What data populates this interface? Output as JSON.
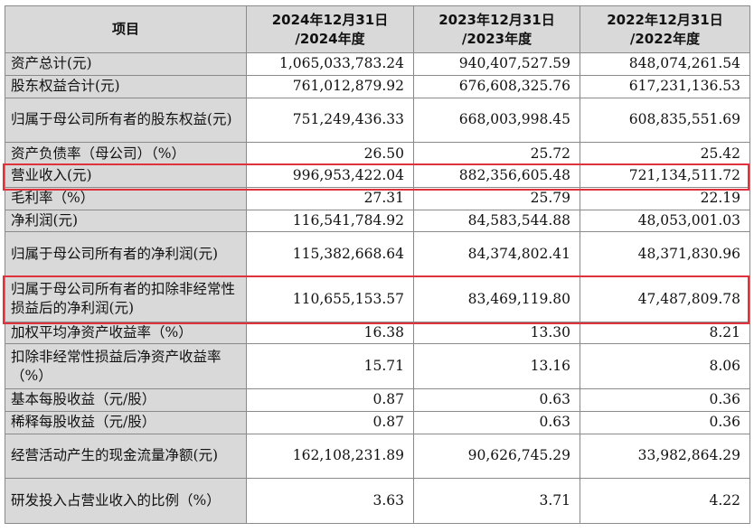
{
  "header": {
    "item_col": "项目",
    "years": [
      {
        "line1": "2024年12月31日",
        "line2": "/2024年度"
      },
      {
        "line1": "2023年12月31日",
        "line2": "/2023年度"
      },
      {
        "line1": "2022年12月31日",
        "line2": "/2022年度"
      }
    ]
  },
  "rows": [
    {
      "label": "资产总计(元)",
      "values": [
        "1,065,033,783.24",
        "940,407,527.59",
        "848,074,261.54"
      ]
    },
    {
      "label": "股东权益合计(元)",
      "values": [
        "761,012,879.92",
        "676,608,325.76",
        "617,231,136.53"
      ]
    },
    {
      "label": "归属于母公司所有者的股东权益(元)",
      "values": [
        "751,249,436.33",
        "668,003,998.45",
        "608,835,551.69"
      ]
    },
    {
      "label": "资产负债率（母公司）（%）",
      "values": [
        "26.50",
        "25.72",
        "25.42"
      ]
    },
    {
      "label": "营业收入(元)",
      "values": [
        "996,953,422.04",
        "882,356,605.48",
        "721,134,511.72"
      ]
    },
    {
      "label": "毛利率（%）",
      "values": [
        "27.31",
        "25.79",
        "22.19"
      ]
    },
    {
      "label": "净利润(元)",
      "values": [
        "116,541,784.92",
        "84,583,544.88",
        "48,053,001.03"
      ]
    },
    {
      "label": "归属于母公司所有者的净利润(元)",
      "values": [
        "115,382,668.64",
        "84,374,802.41",
        "48,371,830.96"
      ]
    },
    {
      "label": "归属于母公司所有者的扣除非经常性损益后的净利润(元)",
      "values": [
        "110,655,153.57",
        "83,469,119.80",
        "47,487,809.78"
      ]
    },
    {
      "label": "加权平均净资产收益率（%）",
      "values": [
        "16.38",
        "13.30",
        "8.21"
      ]
    },
    {
      "label": "扣除非经常性损益后净资产收益率（%）",
      "values": [
        "15.71",
        "13.16",
        "8.06"
      ]
    },
    {
      "label": "基本每股收益（元/股）",
      "values": [
        "0.87",
        "0.63",
        "0.36"
      ]
    },
    {
      "label": "稀释每股收益（元/股）",
      "values": [
        "0.87",
        "0.63",
        "0.36"
      ]
    },
    {
      "label": "经营活动产生的现金流量净额(元)",
      "values": [
        "162,108,231.89",
        "90,626,745.29",
        "33,982,864.29"
      ]
    },
    {
      "label": "研发投入占营业收入的比例（%）",
      "values": [
        "3.63",
        "3.71",
        "4.22"
      ]
    }
  ],
  "highlight": {
    "color": "#e0323c"
  }
}
